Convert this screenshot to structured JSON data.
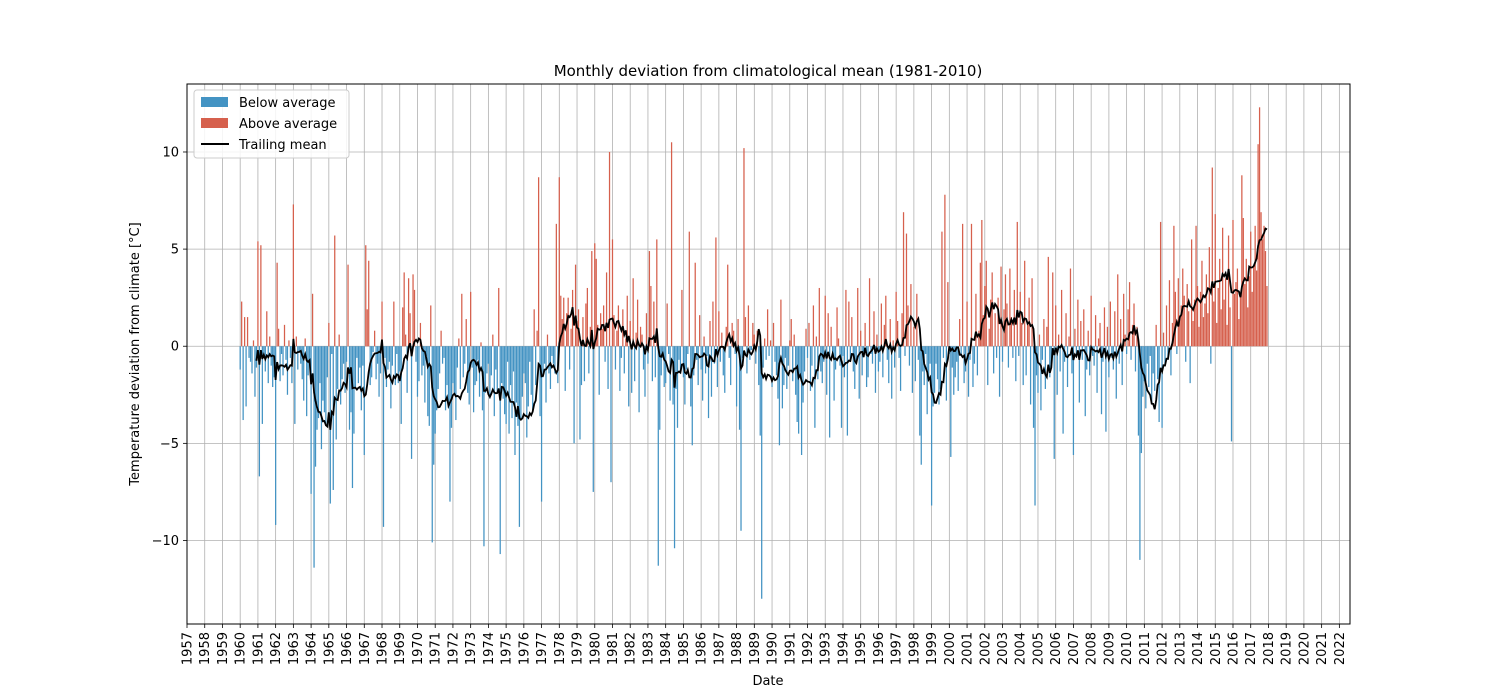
{
  "chart_data": {
    "type": "bar",
    "title": "Monthly deviation from climatological mean (1981-2010)",
    "xlabel": "Date",
    "ylabel": "Temperature deviation from climate [°C]",
    "xlim": [
      1957,
      2022.6
    ],
    "ylim": [
      -14.3,
      13.5
    ],
    "x_ticks": [
      "1957",
      "1958",
      "1959",
      "1960",
      "1961",
      "1962",
      "1963",
      "1964",
      "1965",
      "1966",
      "1967",
      "1968",
      "1969",
      "1970",
      "1971",
      "1972",
      "1973",
      "1974",
      "1975",
      "1976",
      "1977",
      "1978",
      "1979",
      "1980",
      "1981",
      "1982",
      "1983",
      "1984",
      "1985",
      "1986",
      "1987",
      "1988",
      "1989",
      "1990",
      "1991",
      "1992",
      "1993",
      "1994",
      "1995",
      "1996",
      "1997",
      "1998",
      "1999",
      "2000",
      "2001",
      "2002",
      "2003",
      "2004",
      "2005",
      "2006",
      "2007",
      "2008",
      "2009",
      "2010",
      "2011",
      "2012",
      "2013",
      "2014",
      "2015",
      "2016",
      "2017",
      "2018",
      "2019",
      "2020",
      "2021",
      "2022"
    ],
    "y_ticks": [
      {
        "value": -10,
        "label": "−10"
      },
      {
        "value": -5,
        "label": "−5"
      },
      {
        "value": 0,
        "label": "0"
      },
      {
        "value": 5,
        "label": "5"
      },
      {
        "value": 10,
        "label": "10"
      }
    ],
    "grid": true,
    "legend_position": "top-left",
    "series": [
      {
        "name": "Below average",
        "kind": "bar",
        "color": "#4393c3",
        "note": "negative monthly values"
      },
      {
        "name": "Above average",
        "kind": "bar",
        "color": "#d6604d",
        "note": "positive monthly values"
      },
      {
        "name": "Trailing mean",
        "kind": "line",
        "color": "#000000",
        "x_start": 1961.0
      },
      {
        "name": "Monthly deviation",
        "kind": "bar",
        "x_start": 1960.0,
        "step": 0.083333
      }
    ],
    "monthly_values": [
      -1.2,
      2.3,
      -3.8,
      1.5,
      -3.1,
      1.5,
      -0.6,
      -0.8,
      -1.4,
      0.3,
      -2.6,
      -1.1,
      5.4,
      -6.7,
      5.2,
      -4.0,
      -0.5,
      -1.3,
      1.8,
      -1.9,
      0.5,
      -1.0,
      -2.1,
      -1.6,
      -9.2,
      4.3,
      0.9,
      -1.8,
      -0.4,
      -1.5,
      1.1,
      -0.7,
      -2.5,
      0.3,
      -0.6,
      -1.9,
      7.3,
      -4.0,
      0.5,
      -1.2,
      -0.3,
      -0.9,
      -1.7,
      -2.8,
      0.4,
      -3.6,
      -1.5,
      -0.8,
      -7.6,
      2.7,
      -11.4,
      -6.2,
      -4.3,
      -3.7,
      -1.9,
      -5.3,
      -2.8,
      -3.4,
      -4.1,
      -1.6,
      1.2,
      -8.1,
      -0.4,
      -7.4,
      5.7,
      -4.8,
      -2.2,
      0.6,
      -3.0,
      -1.7,
      -0.9,
      -2.4,
      -0.8,
      4.2,
      -4.3,
      -3.4,
      -7.3,
      -4.5,
      -2.1,
      -0.6,
      -1.9,
      -1.1,
      -3.3,
      -1.0,
      -5.6,
      5.2,
      1.9,
      4.4,
      -2.0,
      -1.6,
      -0.3,
      0.8,
      -1.7,
      -0.9,
      -2.6,
      -1.4,
      2.3,
      -9.3,
      -0.6,
      -2.1,
      -1.2,
      -0.8,
      -3.2,
      -1.0,
      2.3,
      -2.0,
      -0.4,
      -1.9,
      -1.3,
      -4.0,
      2.0,
      3.8,
      0.6,
      -2.4,
      3.5,
      1.7,
      -5.8,
      3.7,
      2.9,
      -0.8,
      -2.6,
      -1.8,
      1.2,
      -1.5,
      -1.0,
      -2.9,
      -0.5,
      -3.6,
      -4.1,
      2.1,
      -10.1,
      -6.1,
      -4.5,
      -3.3,
      -2.2,
      -1.4,
      0.8,
      -0.9,
      -0.6,
      -3.3,
      -2.0,
      -3.2,
      -8.0,
      -4.2,
      -1.9,
      -2.5,
      -3.8,
      -1.1,
      0.4,
      -2.2,
      2.7,
      -1.6,
      -0.9,
      1.4,
      -2.4,
      -3.0,
      2.8,
      -1.1,
      -3.4,
      -2.0,
      -1.8,
      -0.7,
      -2.6,
      0.2,
      -3.3,
      -10.3,
      -2.4,
      -1.4,
      -0.9,
      -2.7,
      -1.5,
      0.6,
      -3.6,
      -1.2,
      -2.4,
      3.0,
      -10.7,
      -1.9,
      -2.7,
      -3.5,
      -4.0,
      -0.8,
      -4.5,
      -2.0,
      -3.7,
      -1.3,
      -5.6,
      -2.9,
      -4.1,
      -9.3,
      -3.7,
      -2.6,
      -1.4,
      -1.9,
      -4.7,
      -3.1,
      -0.8,
      -2.5,
      -3.4,
      1.9,
      -2.0,
      0.8,
      8.7,
      -3.6,
      -8.0,
      -1.6,
      -0.9,
      -2.9,
      0.6,
      -1.4,
      -2.2,
      -0.5,
      -0.9,
      -1.4,
      6.3,
      -1.9,
      8.7,
      2.6,
      1.4,
      2.5,
      -2.3,
      1.7,
      2.5,
      -1.2,
      0.9,
      2.9,
      -5.0,
      4.2,
      1.3,
      1.9,
      -4.8,
      -2.0,
      1.5,
      -1.8,
      2.2,
      3.0,
      -1.4,
      1.0,
      4.9,
      -7.5,
      5.3,
      4.5,
      1.1,
      -2.5,
      1.7,
      0.9,
      2.1,
      -0.8,
      3.8,
      -2.2,
      10.0,
      -7.0,
      5.5,
      1.6,
      -1.2,
      0.8,
      2.1,
      -2.3,
      -0.6,
      1.9,
      -1.4,
      0.4,
      2.6,
      -3.1,
      1.3,
      -2.4,
      3.5,
      -1.8,
      0.7,
      2.4,
      -3.4,
      1.0,
      0.6,
      -1.2,
      -2.6,
      1.7,
      -0.9,
      4.9,
      3.1,
      -1.8,
      2.3,
      -1.6,
      5.5,
      -11.3,
      -4.3,
      -1.5,
      -0.6,
      -2.1,
      -1.9,
      2.2,
      -0.4,
      -2.8,
      10.5,
      -3.0,
      -10.4,
      -2.2,
      -4.2,
      -0.7,
      -1.3,
      2.9,
      -1.6,
      -3.0,
      -1.2,
      -0.4,
      5.9,
      -3.1,
      -5.1,
      -1.5,
      4.3,
      -0.7,
      -2.0,
      1.6,
      -1.2,
      -2.8,
      0.5,
      -1.4,
      -0.5,
      -3.7,
      1.3,
      -2.6,
      2.3,
      -0.9,
      5.6,
      -2.1,
      1.8,
      -0.8,
      0.7,
      -1.5,
      -2.4,
      1.0,
      4.2,
      -0.6,
      -2.0,
      1.2,
      0.8,
      -0.4,
      -3.1,
      1.4,
      -4.3,
      -9.5,
      -0.6,
      10.2,
      1.5,
      -1.4,
      2.1,
      -0.7,
      -0.2,
      1.2,
      0.6,
      -0.9,
      0.8,
      -2.0,
      -4.6,
      -13.0,
      -1.1,
      0.4,
      -0.7,
      1.9,
      -0.5,
      0.3,
      -2.1,
      1.2,
      -0.8,
      -1.5,
      -2.7,
      -5.1,
      2.4,
      -3.2,
      -2.0,
      -0.6,
      -2.2,
      -1.0,
      0.3,
      1.4,
      -1.8,
      0.6,
      -2.5,
      -3.9,
      -4.5,
      -1.6,
      -5.6,
      -2.9,
      -1.3,
      0.9,
      -0.6,
      1.2,
      -2.3,
      -1.0,
      2.1,
      -4.2,
      0.5,
      -1.7,
      3.0,
      -1.3,
      -1.9,
      -0.8,
      2.6,
      -2.5,
      1.7,
      -4.7,
      1.0,
      -0.6,
      -2.8,
      -1.2,
      2.0,
      0.4,
      -1.0,
      -4.2,
      -0.5,
      -1.6,
      2.9,
      -4.6,
      2.3,
      -0.8,
      1.5,
      -1.3,
      -2.2,
      -0.9,
      3.0,
      -2.7,
      0.8,
      -1.5,
      -0.3,
      1.2,
      -2.1,
      -1.6,
      3.5,
      -0.4,
      -0.9,
      1.8,
      -2.4,
      0.6,
      -1.3,
      -0.8,
      2.2,
      -1.6,
      1.1,
      2.6,
      -0.7,
      -1.9,
      1.4,
      -2.7,
      0.3,
      -1.1,
      2.8,
      1.3,
      -0.6,
      -2.3,
      1.7,
      6.9,
      -0.5,
      5.8,
      2.1,
      -1.0,
      3.2,
      -2.4,
      1.0,
      -1.8,
      2.7,
      -0.7,
      -4.6,
      -6.1,
      -1.3,
      -2.0,
      -0.4,
      -3.5,
      -1.6,
      -0.9,
      -8.2,
      -3.1,
      -2.4,
      -0.9,
      -1.7,
      -3.0,
      -2.2,
      5.9,
      -0.6,
      7.8,
      -2.8,
      3.3,
      -0.4,
      -5.7,
      -1.1,
      -2.5,
      -1.6,
      -0.8,
      -2.3,
      1.4,
      -0.5,
      6.3,
      -1.9,
      -1.3,
      2.3,
      -2.6,
      -0.7,
      6.3,
      -2.1,
      -0.9,
      2.7,
      -1.5,
      0.8,
      4.3,
      6.5,
      1.6,
      3.1,
      4.4,
      -2.0,
      0.9,
      2.4,
      3.8,
      -1.4,
      1.7,
      -0.6,
      2.5,
      -2.6,
      4.1,
      -0.8,
      1.9,
      3.7,
      2.2,
      -1.1,
      4.0,
      1.5,
      -0.6,
      2.9,
      -1.8,
      6.4,
      -0.5,
      2.8,
      1.2,
      -2.0,
      4.4,
      -1.5,
      1.1,
      2.5,
      -3.0,
      3.5,
      -4.2,
      -8.2,
      -1.5,
      -2.4,
      0.6,
      -3.3,
      -0.7,
      1.4,
      -2.2,
      1.0,
      4.6,
      -1.6,
      -0.9,
      3.8,
      -5.8,
      2.1,
      -2.5,
      0.6,
      -1.3,
      2.9,
      -4.5,
      -0.8,
      1.7,
      -2.1,
      0.5,
      4.0,
      -1.4,
      -5.6,
      0.9,
      -0.6,
      2.4,
      -2.9,
      1.3,
      -0.7,
      1.9,
      -3.6,
      -1.2,
      0.8,
      -1.5,
      2.6,
      -0.5,
      -1.0,
      1.6,
      -2.4,
      0.4,
      1.2,
      -3.5,
      -0.8,
      2.0,
      -4.4,
      1.0,
      -1.6,
      2.3,
      -0.6,
      -1.2,
      1.8,
      -2.7,
      3.7,
      -0.9,
      1.4,
      -2.0,
      2.7,
      0.6,
      -0.4,
      1.9,
      3.3,
      -0.7,
      1.1,
      2.2,
      -1.3,
      1.0,
      -4.6,
      -11.0,
      -5.5,
      -2.6,
      -1.8,
      -3.2,
      -0.9,
      -2.1,
      -0.5,
      -3.0,
      -1.4,
      -2.3,
      1.1,
      -1.7,
      -3.9,
      6.4,
      -4.2,
      0.7,
      -1.0,
      2.1,
      -0.6,
      3.4,
      -1.5,
      1.2,
      6.2,
      2.8,
      -0.4,
      3.5,
      1.6,
      2.1,
      4.0,
      2.6,
      -0.8,
      3.2,
      1.8,
      -1.9,
      5.5,
      1.3,
      2.4,
      6.2,
      3.1,
      1.0,
      2.8,
      4.4,
      1.5,
      2.2,
      3.7,
      1.7,
      5.1,
      -0.9,
      9.2,
      2.3,
      6.8,
      1.2,
      3.0,
      4.5,
      1.9,
      6.1,
      2.4,
      3.5,
      1.1,
      5.7,
      2.0,
      -4.9,
      6.5,
      2.7,
      3.3,
      4.0,
      1.4,
      2.6,
      8.8,
      6.6,
      3.2,
      4.5,
      2.0,
      3.6,
      5.9,
      2.8,
      4.1,
      6.2,
      3.9,
      10.4,
      12.3,
      6.9,
      5.5,
      6.2,
      4.9,
      3.1
    ]
  },
  "legend": {
    "items": [
      {
        "label": "Below average",
        "color": "#4393c3"
      },
      {
        "label": "Above average",
        "color": "#d6604d"
      },
      {
        "label": "Trailing mean",
        "color": "#000000"
      }
    ]
  }
}
